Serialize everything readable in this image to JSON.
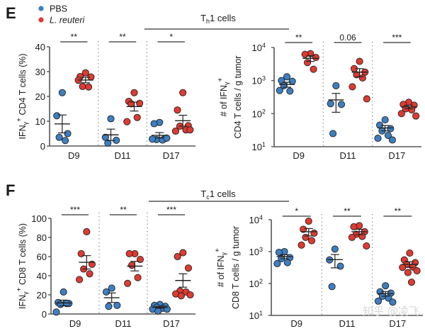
{
  "figure": {
    "panel_e_label": "E",
    "panel_f_label": "F",
    "legend": [
      {
        "label": "PBS",
        "color": "#3d7fc1"
      },
      {
        "label": "L. reuteri",
        "color": "#e03a31",
        "italic": true
      }
    ],
    "group_titles": {
      "th1": {
        "main": "T",
        "sub": "h",
        "rest": "1 cells"
      },
      "tc1": {
        "main": "T",
        "sub": "c",
        "rest": "1 cells"
      }
    },
    "watermark": "知乎 @凌飞"
  },
  "chart_data": [
    {
      "id": "E-left",
      "type": "scatter",
      "title": "",
      "ylabel": "IFNγ+ CD4 T cells (%)",
      "ylabel_parts": {
        "pre": "IFN",
        "sub": "γ",
        "sup": "+",
        "post": " CD4 T cells (%)"
      },
      "yscale": "linear",
      "ylim": [
        0,
        40
      ],
      "yticks": [
        0,
        10,
        20,
        30,
        40
      ],
      "ytick_labels": [
        "0",
        "10",
        "20",
        "30",
        "40"
      ],
      "categories": [
        "D9",
        "D11",
        "D17"
      ],
      "significance": [
        "**",
        "**",
        "*"
      ],
      "series": [
        {
          "name": "PBS",
          "color": "#3d7fc1",
          "values": [
            [
              21.5,
              12.2,
              5.0,
              3.5,
              2.2
            ],
            [
              11.0,
              3.5,
              2.3,
              1.2
            ],
            [
              9.5,
              9.0,
              3.0,
              2.6,
              2.4,
              2.8,
              3.2
            ]
          ],
          "mean": [
            8.9,
            4.5,
            4.3
          ],
          "sem": [
            3.6,
            2.3,
            1.1
          ]
        },
        {
          "name": "L. reuteri",
          "color": "#e03a31",
          "values": [
            [
              29.5,
              28.0,
              27.8,
              24.0,
              23.8,
              26.5
            ],
            [
              21.5,
              18.0,
              17.2,
              17.0,
              11.5,
              9.8
            ],
            [
              21.5,
              14.5,
              8.2,
              8.0,
              6.5,
              6.0,
              6.5
            ]
          ],
          "mean": [
            26.6,
            15.9,
            10.2
          ],
          "sem": [
            1.1,
            1.8,
            2.2
          ]
        }
      ]
    },
    {
      "id": "E-right",
      "type": "scatter",
      "title": "",
      "ylabel": "# of IFNγ+ CD4 T cells / g tumor",
      "ylabel_parts": {
        "line1_pre": "# of IFN",
        "line1_sub": "γ",
        "line1_sup": "+",
        "line2": "CD4 T cells / g tumor"
      },
      "yscale": "log",
      "ylim": [
        10,
        10000
      ],
      "yticks": [
        10,
        100,
        1000,
        10000
      ],
      "ytick_labels": [
        {
          "base": "10",
          "exp": "1"
        },
        {
          "base": "10",
          "exp": "2"
        },
        {
          "base": "10",
          "exp": "3"
        },
        {
          "base": "10",
          "exp": "4"
        }
      ],
      "categories": [
        "D9",
        "D11",
        "D17"
      ],
      "significance": [
        "**",
        "0.06",
        "***"
      ],
      "series": [
        {
          "name": "PBS",
          "color": "#3d7fc1",
          "values": [
            [
              1300,
              1000,
              950,
              700,
              480,
              500
            ],
            [
              700,
              200,
              190,
              25
            ],
            [
              65,
              45,
              35,
              30,
              22,
              18,
              16
            ]
          ],
          "mean": [
            760,
            260,
            37
          ],
          "sem": [
            130,
            150,
            7
          ]
        },
        {
          "name": "L. reuteri",
          "color": "#e03a31",
          "values": [
            [
              6500,
              6200,
              5000,
              3500,
              2200
            ],
            [
              3800,
              2300,
              1800,
              1500,
              1200,
              650,
              280
            ],
            [
              220,
              190,
              180,
              140,
              130,
              100,
              85
            ]
          ],
          "mean": [
            4700,
            1800,
            160
          ],
          "sem": [
            900,
            500,
            20
          ]
        }
      ]
    },
    {
      "id": "F-left",
      "type": "scatter",
      "title": "",
      "ylabel": "IFNγ+ CD8 T cells (%)",
      "ylabel_parts": {
        "pre": "IFN",
        "sub": "γ",
        "sup": "+",
        "post": " CD8 T cells (%)"
      },
      "yscale": "linear",
      "ylim": [
        0,
        100
      ],
      "yticks": [
        0,
        20,
        40,
        60,
        80,
        100
      ],
      "ytick_labels": [
        "0",
        "20",
        "40",
        "60",
        "80",
        "100"
      ],
      "categories": [
        "D9",
        "D11",
        "D17"
      ],
      "significance": [
        "***",
        "**",
        "***"
      ],
      "series": [
        {
          "name": "PBS",
          "color": "#3d7fc1",
          "values": [
            [
              23,
              12,
              11,
              10,
              11,
              2
            ],
            [
              27,
              23,
              9,
              8
            ],
            [
              10,
              9,
              8,
              7,
              6,
              5,
              5,
              3
            ]
          ],
          "mean": [
            11.5,
            17,
            7
          ],
          "sem": [
            3,
            5,
            1
          ]
        },
        {
          "name": "L. reuteri",
          "color": "#e03a31",
          "values": [
            [
              86,
              63,
              52,
              47,
              42,
              36
            ],
            [
              63,
              63,
              57,
              51,
              38,
              32
            ],
            [
              64,
              60,
              48,
              24,
              23,
              21,
              20,
              19
            ]
          ],
          "mean": [
            54,
            50,
            35
          ],
          "sem": [
            7,
            5,
            7
          ]
        }
      ]
    },
    {
      "id": "F-right",
      "type": "scatter",
      "title": "",
      "ylabel": "# of IFNγ+ CD8 T cells / g tumor",
      "ylabel_parts": {
        "line1_pre": "# of IFN",
        "line1_sub": "γ",
        "line1_sup": "+",
        "line2": "CD8 T cells / g tumor"
      },
      "yscale": "log",
      "ylim": [
        10,
        10000
      ],
      "yticks": [
        10,
        100,
        1000,
        10000
      ],
      "ytick_labels": [
        {
          "base": "10",
          "exp": "1"
        },
        {
          "base": "10",
          "exp": "2"
        },
        {
          "base": "10",
          "exp": "3"
        },
        {
          "base": "10",
          "exp": "4"
        }
      ],
      "categories": [
        "D9",
        "D11",
        "D17"
      ],
      "significance": [
        "*",
        "**",
        "**"
      ],
      "series": [
        {
          "name": "PBS",
          "color": "#3d7fc1",
          "values": [
            [
              1000,
              950,
              650,
              600,
              450,
              420
            ],
            [
              1200,
              550,
              350,
              80
            ],
            [
              85,
              55,
              50,
              40,
              35,
              28,
              26
            ]
          ],
          "mean": [
            700,
            560,
            48
          ],
          "sem": [
            100,
            250,
            8
          ]
        },
        {
          "name": "L. reuteri",
          "color": "#e03a31",
          "values": [
            [
              9000,
              5000,
              3800,
              2800,
              2200,
              1600
            ],
            [
              6500,
              6000,
              4200,
              3500,
              3000,
              2800,
              1500
            ],
            [
              900,
              550,
              450,
              400,
              330,
              320,
              250,
              220,
              110
            ]
          ],
          "mean": [
            4200,
            4200,
            400
          ],
          "sem": [
            1100,
            800,
            80
          ]
        }
      ]
    }
  ]
}
